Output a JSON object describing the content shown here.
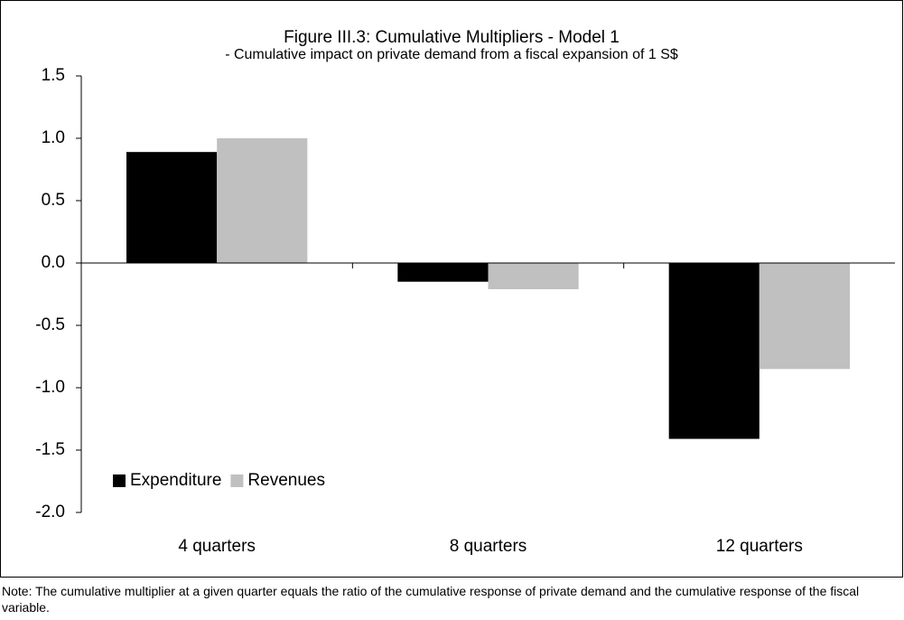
{
  "chart_data": {
    "type": "bar",
    "title": "Figure III.3: Cumulative Multipliers - Model 1",
    "subtitle": "- Cumulative impact on private demand from a fiscal expansion of 1 S$",
    "categories": [
      "4 quarters",
      "8 quarters",
      "12 quarters"
    ],
    "series": [
      {
        "name": "Expenditure",
        "color": "#000000",
        "values": [
          0.89,
          -0.15,
          -1.41
        ]
      },
      {
        "name": "Revenues",
        "color": "#c0c0c0",
        "values": [
          1.0,
          -0.21,
          -0.85
        ]
      }
    ],
    "ylim": [
      -2.0,
      1.5
    ],
    "yticks": [
      1.5,
      {
        "value": 1.0,
        "label": "1.0"
      },
      0.5,
      {
        "value": 0,
        "label": "0.0"
      },
      -0.5,
      {
        "value": -1.0,
        "label": "-1.0"
      },
      -1.5,
      {
        "value": -2.0,
        "label": "-2.0"
      }
    ],
    "grid": false,
    "legend": "lower-left",
    "note": "Note: The cumulative multiplier at a given quarter equals the ratio of the cumulative response of private demand and the cumulative response of the fiscal variable."
  }
}
